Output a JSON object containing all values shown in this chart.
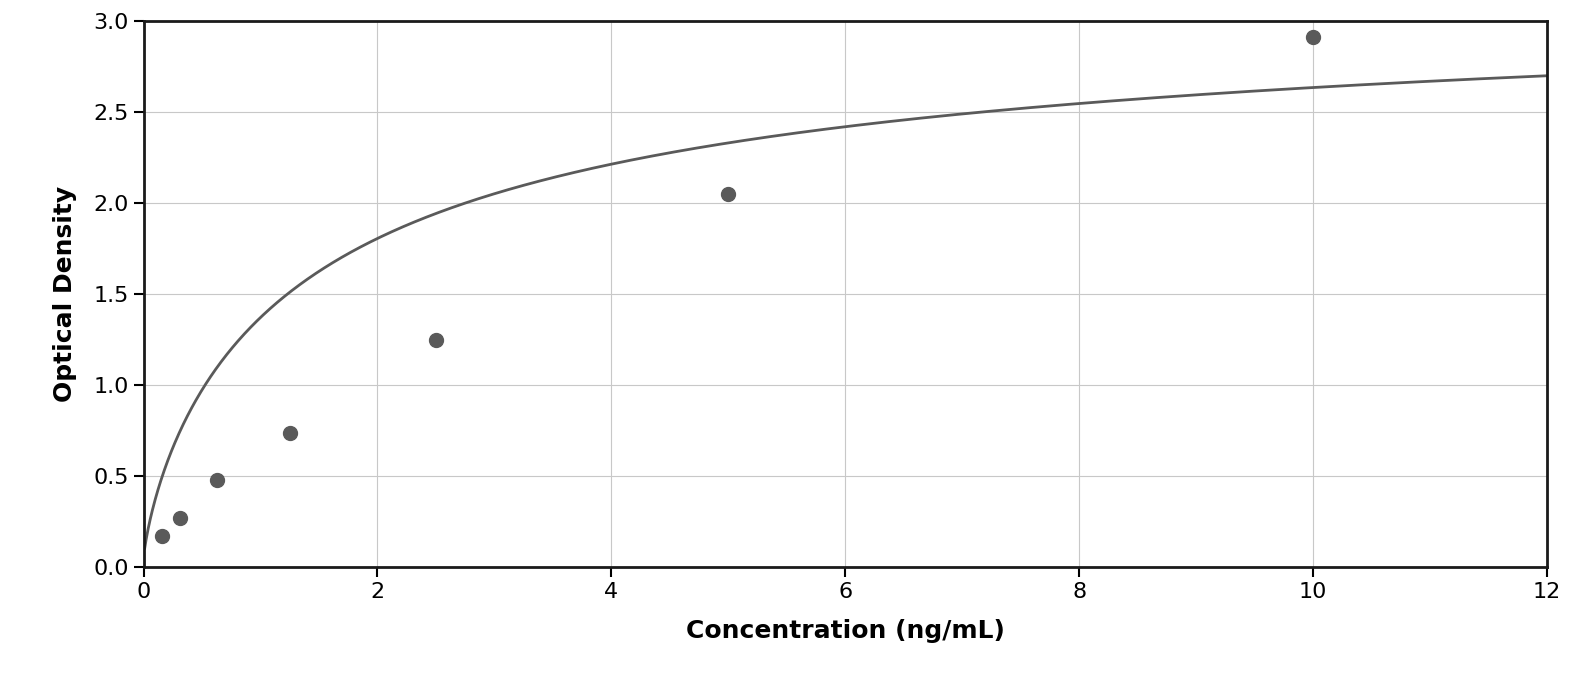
{
  "x_data": [
    0.156,
    0.312,
    0.625,
    1.25,
    2.5,
    5.0,
    10.0
  ],
  "y_data": [
    0.17,
    0.27,
    0.48,
    0.74,
    1.25,
    2.05,
    2.91
  ],
  "xlabel": "Concentration (ng/mL)",
  "ylabel": "Optical Density",
  "xlim": [
    0,
    12
  ],
  "ylim": [
    0,
    3.0
  ],
  "xticks": [
    0,
    2,
    4,
    6,
    8,
    10,
    12
  ],
  "yticks": [
    0,
    0.5,
    1.0,
    1.5,
    2.0,
    2.5,
    3.0
  ],
  "dot_color": "#5a5a5a",
  "line_color": "#5a5a5a",
  "grid_color": "#c8c8c8",
  "background_color": "#ffffff",
  "border_color": "#1a1a1a",
  "figure_bg": "#ffffff",
  "dot_size": 100,
  "line_width": 2.0,
  "xlabel_fontsize": 18,
  "ylabel_fontsize": 18,
  "tick_fontsize": 16,
  "xlabel_fontweight": "bold",
  "ylabel_fontweight": "bold"
}
